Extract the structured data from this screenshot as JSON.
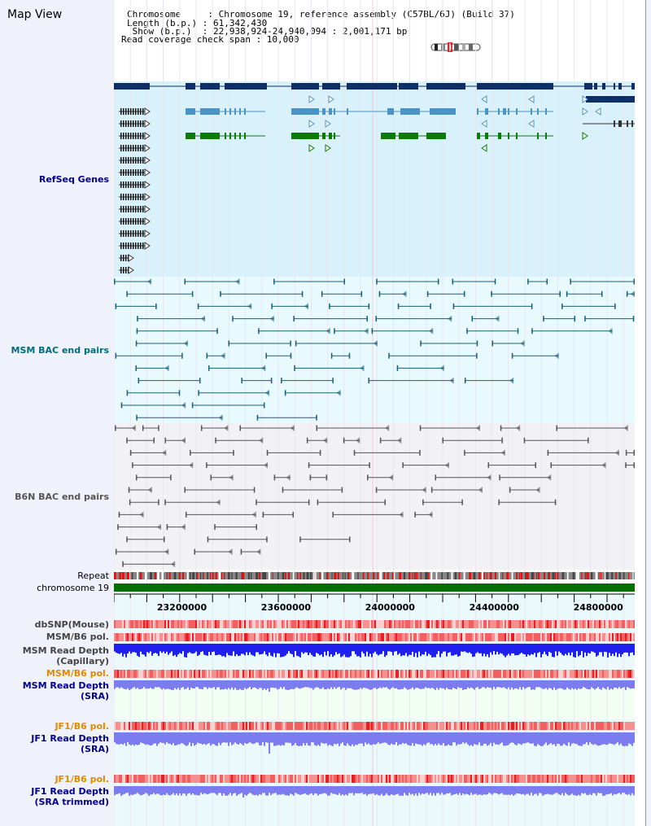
{
  "page": {
    "title": "Map View"
  },
  "header": {
    "chromosome_line": "Chromosome     : Chromosome 19, reference assembly (C57BL/6J) (Build 37)",
    "length_line": "Length (b.p.) : 61,342,430",
    "show_line": " Show (b.p.)  : 22,938,924-24,940,094 : 2,001,171 bp",
    "coverage_line": "Read coverage check span : 10,000"
  },
  "tracks": {
    "refseq": "RefSeq Genes",
    "msm_bac": "MSM BAC end pairs",
    "b6n_bac": "B6N BAC end pairs",
    "repeat": "Repeat",
    "chromosome": "chromosome 19",
    "dbsnp": "dbSNP(Mouse)",
    "msm_b6_pol": "MSM/B6 pol.",
    "msm_depth_cap_1": "MSM Read Depth",
    "msm_depth_cap_2": "(Capillary)",
    "msm_b6_pol2": "MSM/B6 pol.",
    "msm_depth_sra_1": "MSM Read Depth",
    "msm_depth_sra_2": "(SRA)",
    "jf1_b6_pol": "JF1/B6 pol.",
    "jf1_depth_sra_1": "JF1 Read Depth",
    "jf1_depth_sra_2": "(SRA)",
    "jf1_b6_pol2": "JF1/B6 pol.",
    "jf1_depth_trim_1": "JF1 Read Depth",
    "jf1_depth_trim_2": "(SRA trimmed)"
  },
  "axis": {
    "start_bp": 22938924,
    "end_bp": 24940094,
    "ticks": [
      "23200000",
      "23600000",
      "24000000",
      "24400000",
      "24800000"
    ]
  },
  "colors": {
    "refseq_dark": "#0e2f66",
    "refseq_mid": "#4b93c4",
    "refseq_green": "#0a7a0a",
    "msm_line": "#1a5f7a",
    "b6n_line": "#555555",
    "snp_red": "#ee3333",
    "depth_blue": "#2020ee",
    "depth_light": "#7c7cf0",
    "chrom_green": "#007000",
    "refseq_bg": "#d8f1fb",
    "msm_bg": "#e8fafd",
    "b6n_bg": "#f2f2f6",
    "lower_bg": "#eaf9fc",
    "sra_bg": "#f2fdf4"
  }
}
